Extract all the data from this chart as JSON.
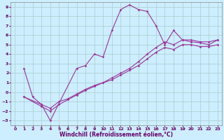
{
  "xlabel": "Windchill (Refroidissement éolien,°C)",
  "background_color": "#cceeff",
  "grid_color": "#aacccc",
  "line_color": "#993399",
  "xlim": [
    -0.5,
    23.5
  ],
  "ylim": [
    -3.5,
    9.5
  ],
  "xticks": [
    0,
    1,
    2,
    3,
    4,
    5,
    6,
    7,
    8,
    9,
    10,
    11,
    12,
    13,
    14,
    15,
    16,
    17,
    18,
    19,
    20,
    21,
    22,
    23
  ],
  "yticks": [
    -3,
    -2,
    -1,
    0,
    1,
    2,
    3,
    4,
    5,
    6,
    7,
    8,
    9
  ],
  "line1_x": [
    1,
    2,
    3,
    4,
    7,
    8,
    9,
    10,
    11,
    12,
    13,
    14,
    15,
    16,
    17,
    18,
    19,
    20,
    21,
    22,
    23
  ],
  "line1_y": [
    2.5,
    -0.5,
    -1.3,
    -3.0,
    2.5,
    2.8,
    4.0,
    3.7,
    6.5,
    8.7,
    9.2,
    8.7,
    8.5,
    7.0,
    5.0,
    6.5,
    5.5,
    5.3,
    5.2,
    5.0,
    5.5
  ],
  "line2_x": [
    1,
    3,
    4,
    5,
    6,
    7,
    8,
    9,
    10,
    11,
    12,
    13,
    14,
    15,
    16,
    17,
    18,
    19,
    20,
    21,
    22,
    23
  ],
  "line2_y": [
    -0.5,
    -1.3,
    -1.7,
    -1.0,
    -0.7,
    -0.2,
    0.3,
    0.7,
    1.0,
    1.5,
    2.0,
    2.5,
    3.2,
    4.0,
    4.7,
    5.3,
    5.0,
    5.5,
    5.5,
    5.3,
    5.3,
    5.5
  ],
  "line3_x": [
    1,
    3,
    4,
    5,
    6,
    7,
    8,
    9,
    10,
    11,
    12,
    13,
    14,
    15,
    16,
    17,
    18,
    19,
    20,
    21,
    22,
    23
  ],
  "line3_y": [
    -0.5,
    -1.5,
    -2.0,
    -1.3,
    -0.8,
    -0.3,
    0.2,
    0.6,
    1.0,
    1.3,
    1.8,
    2.3,
    2.8,
    3.5,
    4.2,
    4.7,
    4.5,
    5.0,
    5.0,
    4.8,
    4.8,
    5.0
  ]
}
